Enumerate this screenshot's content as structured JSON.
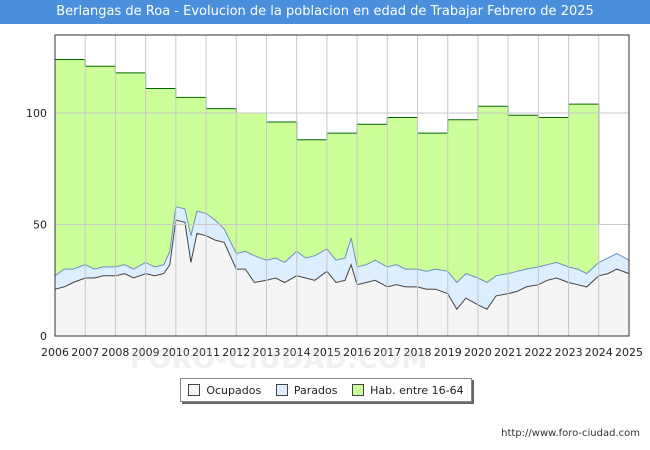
{
  "chart_data": {
    "type": "area",
    "title": "Berlangas de Roa - Evolucion de la poblacion en edad de Trabajar Febrero de 2025",
    "xlabel": "",
    "ylabel": "",
    "xlim": [
      2006,
      2025
    ],
    "ylim": [
      0,
      135
    ],
    "yticks": [
      0,
      50,
      100
    ],
    "xticks": [
      2006,
      2007,
      2008,
      2009,
      2010,
      2011,
      2012,
      2013,
      2014,
      2015,
      2016,
      2017,
      2018,
      2019,
      2020,
      2021,
      2022,
      2023,
      2024,
      2025
    ],
    "grid": true,
    "legend_position": "bottom",
    "series": [
      {
        "name": "Hab. entre 16-64",
        "color": "#ccff99",
        "line_color": "#006600",
        "x": [
          2006,
          2007,
          2007,
          2008,
          2008,
          2009,
          2009,
          2010,
          2010,
          2011,
          2011,
          2012,
          2012,
          2013,
          2013,
          2014,
          2014,
          2015,
          2015,
          2016,
          2016,
          2017,
          2017,
          2018,
          2018,
          2019,
          2019,
          2020,
          2020,
          2021,
          2021,
          2022,
          2022,
          2023,
          2023,
          2024,
          2024
        ],
        "values": [
          124,
          124,
          121,
          121,
          118,
          118,
          111,
          111,
          107,
          107,
          102,
          102,
          100,
          100,
          96,
          96,
          88,
          88,
          91,
          91,
          95,
          95,
          98,
          98,
          91,
          91,
          97,
          97,
          103,
          103,
          99,
          99,
          98,
          98,
          104,
          104,
          50
        ]
      },
      {
        "name": "Parados",
        "color": "#ddeeff",
        "line_color": "#6a8fbf",
        "x": [
          2006,
          2006.3,
          2006.6,
          2007,
          2007.3,
          2007.6,
          2008,
          2008.3,
          2008.6,
          2009,
          2009.3,
          2009.6,
          2009.8,
          2010,
          2010.3,
          2010.5,
          2010.7,
          2011,
          2011.3,
          2011.6,
          2012,
          2012.3,
          2012.6,
          2013,
          2013.3,
          2013.6,
          2014,
          2014.3,
          2014.6,
          2015,
          2015.3,
          2015.6,
          2015.8,
          2016,
          2016.3,
          2016.6,
          2017,
          2017.3,
          2017.6,
          2018,
          2018.3,
          2018.6,
          2019,
          2019.3,
          2019.6,
          2020,
          2020.3,
          2020.6,
          2021,
          2021.3,
          2021.6,
          2022,
          2022.3,
          2022.6,
          2023,
          2023.3,
          2023.6,
          2024,
          2024.3,
          2024.6,
          2025
        ],
        "values": [
          27,
          30,
          30,
          32,
          30,
          31,
          31,
          32,
          30,
          33,
          31,
          32,
          38,
          58,
          57,
          45,
          56,
          55,
          52,
          48,
          37,
          38,
          36,
          34,
          35,
          33,
          38,
          35,
          36,
          39,
          34,
          35,
          44,
          31,
          32,
          34,
          31,
          32,
          30,
          30,
          29,
          30,
          29,
          24,
          28,
          26,
          24,
          27,
          28,
          29,
          30,
          31,
          32,
          33,
          31,
          30,
          28,
          33,
          35,
          37,
          34
        ]
      },
      {
        "name": "Ocupados",
        "color": "#f5f5f5",
        "line_color": "#444444",
        "x": [
          2006,
          2006.3,
          2006.6,
          2007,
          2007.3,
          2007.6,
          2008,
          2008.3,
          2008.6,
          2009,
          2009.3,
          2009.6,
          2009.8,
          2010,
          2010.3,
          2010.5,
          2010.7,
          2011,
          2011.3,
          2011.6,
          2012,
          2012.3,
          2012.6,
          2013,
          2013.3,
          2013.6,
          2014,
          2014.3,
          2014.6,
          2015,
          2015.3,
          2015.6,
          2015.8,
          2016,
          2016.3,
          2016.6,
          2017,
          2017.3,
          2017.6,
          2018,
          2018.3,
          2018.6,
          2019,
          2019.3,
          2019.6,
          2020,
          2020.3,
          2020.6,
          2021,
          2021.3,
          2021.6,
          2022,
          2022.3,
          2022.6,
          2023,
          2023.3,
          2023.6,
          2024,
          2024.3,
          2024.6,
          2025
        ],
        "values": [
          21,
          22,
          24,
          26,
          26,
          27,
          27,
          28,
          26,
          28,
          27,
          28,
          32,
          52,
          51,
          33,
          46,
          45,
          43,
          42,
          30,
          30,
          24,
          25,
          26,
          24,
          27,
          26,
          25,
          29,
          24,
          25,
          32,
          23,
          24,
          25,
          22,
          23,
          22,
          22,
          21,
          21,
          19,
          12,
          17,
          14,
          12,
          18,
          19,
          20,
          22,
          23,
          25,
          26,
          24,
          23,
          22,
          27,
          28,
          30,
          28
        ]
      }
    ]
  },
  "legend": {
    "items": [
      {
        "label": "Ocupados",
        "color": "#f5f5f5"
      },
      {
        "label": "Parados",
        "color": "#ddeeff"
      },
      {
        "label": "Hab. entre 16-64",
        "color": "#ccff99"
      }
    ]
  },
  "source_url": "http://www.foro-ciudad.com",
  "watermark": "FORO-CIUDAD.COM"
}
